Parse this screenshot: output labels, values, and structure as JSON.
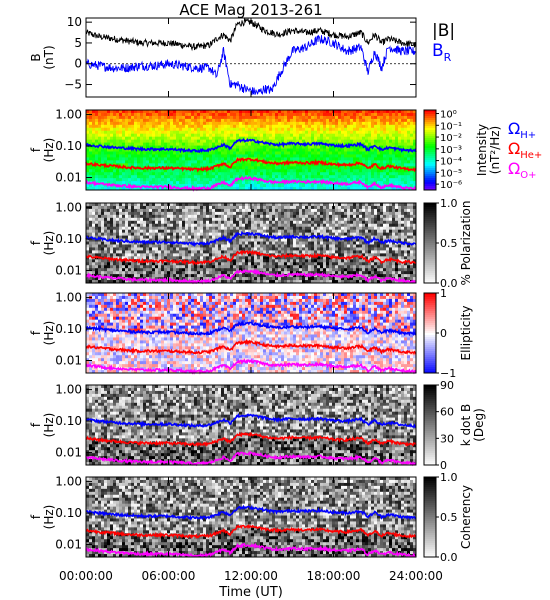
{
  "title": "ACE Mag 2013-261",
  "xlabel": "Time (UT)",
  "xticks": [
    "00:00:00",
    "06:00:00",
    "12:00:00",
    "18:00:00",
    "24:00:00"
  ],
  "legend": {
    "top": [
      {
        "text": "|B|",
        "color": "#000000"
      },
      {
        "text": "B",
        "sub": "R",
        "color": "#0000ff"
      }
    ],
    "gyro": [
      {
        "text": "Ω",
        "sub": "H+",
        "color": "#0000ff"
      },
      {
        "text": "Ω",
        "sub": "He+",
        "color": "#ff0000"
      },
      {
        "text": "Ω",
        "sub": "O+",
        "color": "#ff00ff"
      }
    ]
  },
  "chart_data": [
    {
      "type": "line",
      "ylabel": "B",
      "yunit": "(nT)",
      "ylim": [
        -8,
        11
      ],
      "yticks": [
        "10",
        "5",
        "0",
        "−5"
      ],
      "ytick_values": [
        10,
        5,
        0,
        -5
      ],
      "x_range_hours": [
        0,
        24
      ],
      "series": [
        {
          "name": "|B|",
          "color": "#000000",
          "x": [
            0,
            1,
            2,
            3,
            4,
            5,
            6,
            7,
            8,
            9,
            9.5,
            10,
            10.5,
            11,
            11.5,
            12,
            12.5,
            13,
            13.5,
            14,
            15,
            16,
            17,
            18,
            19,
            20,
            20.5,
            21,
            21.5,
            22,
            23,
            24
          ],
          "values": [
            7.5,
            6.5,
            6,
            5.5,
            5,
            5,
            5,
            4.5,
            4,
            4.5,
            6,
            7,
            5.5,
            9.5,
            10,
            10,
            9,
            8,
            7.5,
            7,
            8,
            7.5,
            8,
            7,
            6.5,
            7.5,
            5,
            7,
            5,
            6,
            5,
            4.5
          ]
        },
        {
          "name": "B",
          "sub": "R",
          "color": "#0000ff",
          "x": [
            0,
            1,
            2,
            3,
            4,
            5,
            6,
            7,
            8,
            9,
            9.5,
            10,
            10.5,
            11,
            11.5,
            12,
            12.5,
            13,
            13.5,
            14,
            15,
            16,
            17,
            18,
            19,
            20,
            20.5,
            21,
            21.5,
            22,
            23,
            24
          ],
          "values": [
            0,
            -0.5,
            -1,
            -1,
            -0.5,
            -0.5,
            0,
            -0.5,
            -1,
            -1,
            -3,
            3,
            -5,
            -5,
            -6,
            -6.5,
            -7,
            -6,
            -6.5,
            -3,
            3,
            4,
            6,
            5,
            3,
            4,
            -2,
            3,
            -1,
            4,
            3,
            3
          ]
        }
      ]
    },
    {
      "type": "heatmap",
      "ylabel": "f",
      "yunit": "(Hz)",
      "yticks": [
        "1.00",
        "0.10",
        "0.01"
      ],
      "ytick_values": [
        1,
        0.1,
        0.01
      ],
      "ylim": [
        0.004,
        1.4
      ],
      "colorbar": {
        "label": "Intensity",
        "unit": "(nT²/Hz)",
        "ticks": [
          "10⁰",
          "10⁻¹",
          "10⁻²",
          "10⁻³",
          "10⁻⁴",
          "10⁻⁵",
          "10⁻⁶"
        ],
        "range": [
          -6.5,
          0.3
        ],
        "scale": "rainbow"
      }
    },
    {
      "type": "heatmap",
      "ylabel": "f",
      "yunit": "(Hz)",
      "yticks": [
        "1.00",
        "0.10",
        "0.01"
      ],
      "ytick_values": [
        1,
        0.1,
        0.01
      ],
      "ylim": [
        0.004,
        1.4
      ],
      "colorbar": {
        "label": "% Polarization",
        "ticks": [
          "1.0",
          "0.5",
          "0.0"
        ],
        "tick_values": [
          1,
          0.5,
          0
        ],
        "range": [
          0,
          1
        ],
        "scale": "gray-reverse"
      }
    },
    {
      "type": "heatmap",
      "ylabel": "f",
      "yunit": "(Hz)",
      "yticks": [
        "1.00",
        "0.10",
        "0.01"
      ],
      "ytick_values": [
        1,
        0.1,
        0.01
      ],
      "ylim": [
        0.004,
        1.4
      ],
      "colorbar": {
        "label": "Ellipticity",
        "ticks": [
          "1",
          "0",
          "−1"
        ],
        "tick_values": [
          1,
          0,
          -1
        ],
        "range": [
          -1,
          1
        ],
        "scale": "blue-white-red"
      }
    },
    {
      "type": "heatmap",
      "ylabel": "f",
      "yunit": "(Hz)",
      "yticks": [
        "1.00",
        "0.10",
        "0.01"
      ],
      "ytick_values": [
        1,
        0.1,
        0.01
      ],
      "ylim": [
        0.004,
        1.4
      ],
      "colorbar": {
        "label": "k dot B",
        "unit": "(Deg)",
        "ticks": [
          "90",
          "60",
          "30",
          "0"
        ],
        "tick_values": [
          90,
          60,
          30,
          0
        ],
        "range": [
          0,
          90
        ],
        "scale": "gray-reverse"
      }
    },
    {
      "type": "heatmap",
      "ylabel": "f",
      "yunit": "(Hz)",
      "yticks": [
        "1.00",
        "0.10",
        "0.01"
      ],
      "ytick_values": [
        1,
        0.1,
        0.01
      ],
      "ylim": [
        0.004,
        1.4
      ],
      "colorbar": {
        "label": "Coherency",
        "ticks": [
          "1.0",
          "0.5",
          "0.0"
        ],
        "tick_values": [
          1,
          0.5,
          0
        ],
        "range": [
          0,
          1
        ],
        "scale": "gray-reverse"
      }
    }
  ],
  "gyrofrequency_lines": {
    "x": [
      0,
      1,
      2,
      3,
      4,
      5,
      6,
      7,
      8,
      9,
      9.5,
      10,
      10.5,
      11,
      11.5,
      12,
      12.5,
      13,
      13.5,
      14,
      15,
      16,
      17,
      18,
      19,
      20,
      20.5,
      21,
      21.5,
      22,
      23,
      24
    ],
    "series": [
      {
        "name": "Ω",
        "sub": "H+",
        "color": "#0000ff",
        "values": [
          0.11,
          0.1,
          0.09,
          0.085,
          0.08,
          0.08,
          0.08,
          0.075,
          0.07,
          0.075,
          0.09,
          0.11,
          0.085,
          0.145,
          0.15,
          0.15,
          0.14,
          0.125,
          0.115,
          0.11,
          0.12,
          0.115,
          0.12,
          0.105,
          0.1,
          0.115,
          0.075,
          0.105,
          0.075,
          0.09,
          0.075,
          0.07
        ]
      },
      {
        "name": "Ω",
        "sub": "He+",
        "color": "#ff0000",
        "values": [
          0.028,
          0.025,
          0.023,
          0.021,
          0.02,
          0.02,
          0.02,
          0.019,
          0.018,
          0.019,
          0.023,
          0.028,
          0.021,
          0.036,
          0.038,
          0.038,
          0.035,
          0.031,
          0.029,
          0.028,
          0.03,
          0.029,
          0.03,
          0.026,
          0.025,
          0.029,
          0.019,
          0.026,
          0.019,
          0.023,
          0.019,
          0.018
        ]
      },
      {
        "name": "Ω",
        "sub": "O+",
        "color": "#ff00ff",
        "values": [
          0.007,
          0.0063,
          0.0057,
          0.0053,
          0.005,
          0.005,
          0.005,
          0.0047,
          0.0044,
          0.0047,
          0.0057,
          0.007,
          0.0053,
          0.009,
          0.0095,
          0.0095,
          0.0088,
          0.0078,
          0.0072,
          0.007,
          0.0075,
          0.0072,
          0.0075,
          0.0066,
          0.0063,
          0.0072,
          0.0047,
          0.0066,
          0.0047,
          0.0057,
          0.0047,
          0.0044
        ]
      }
    ]
  }
}
